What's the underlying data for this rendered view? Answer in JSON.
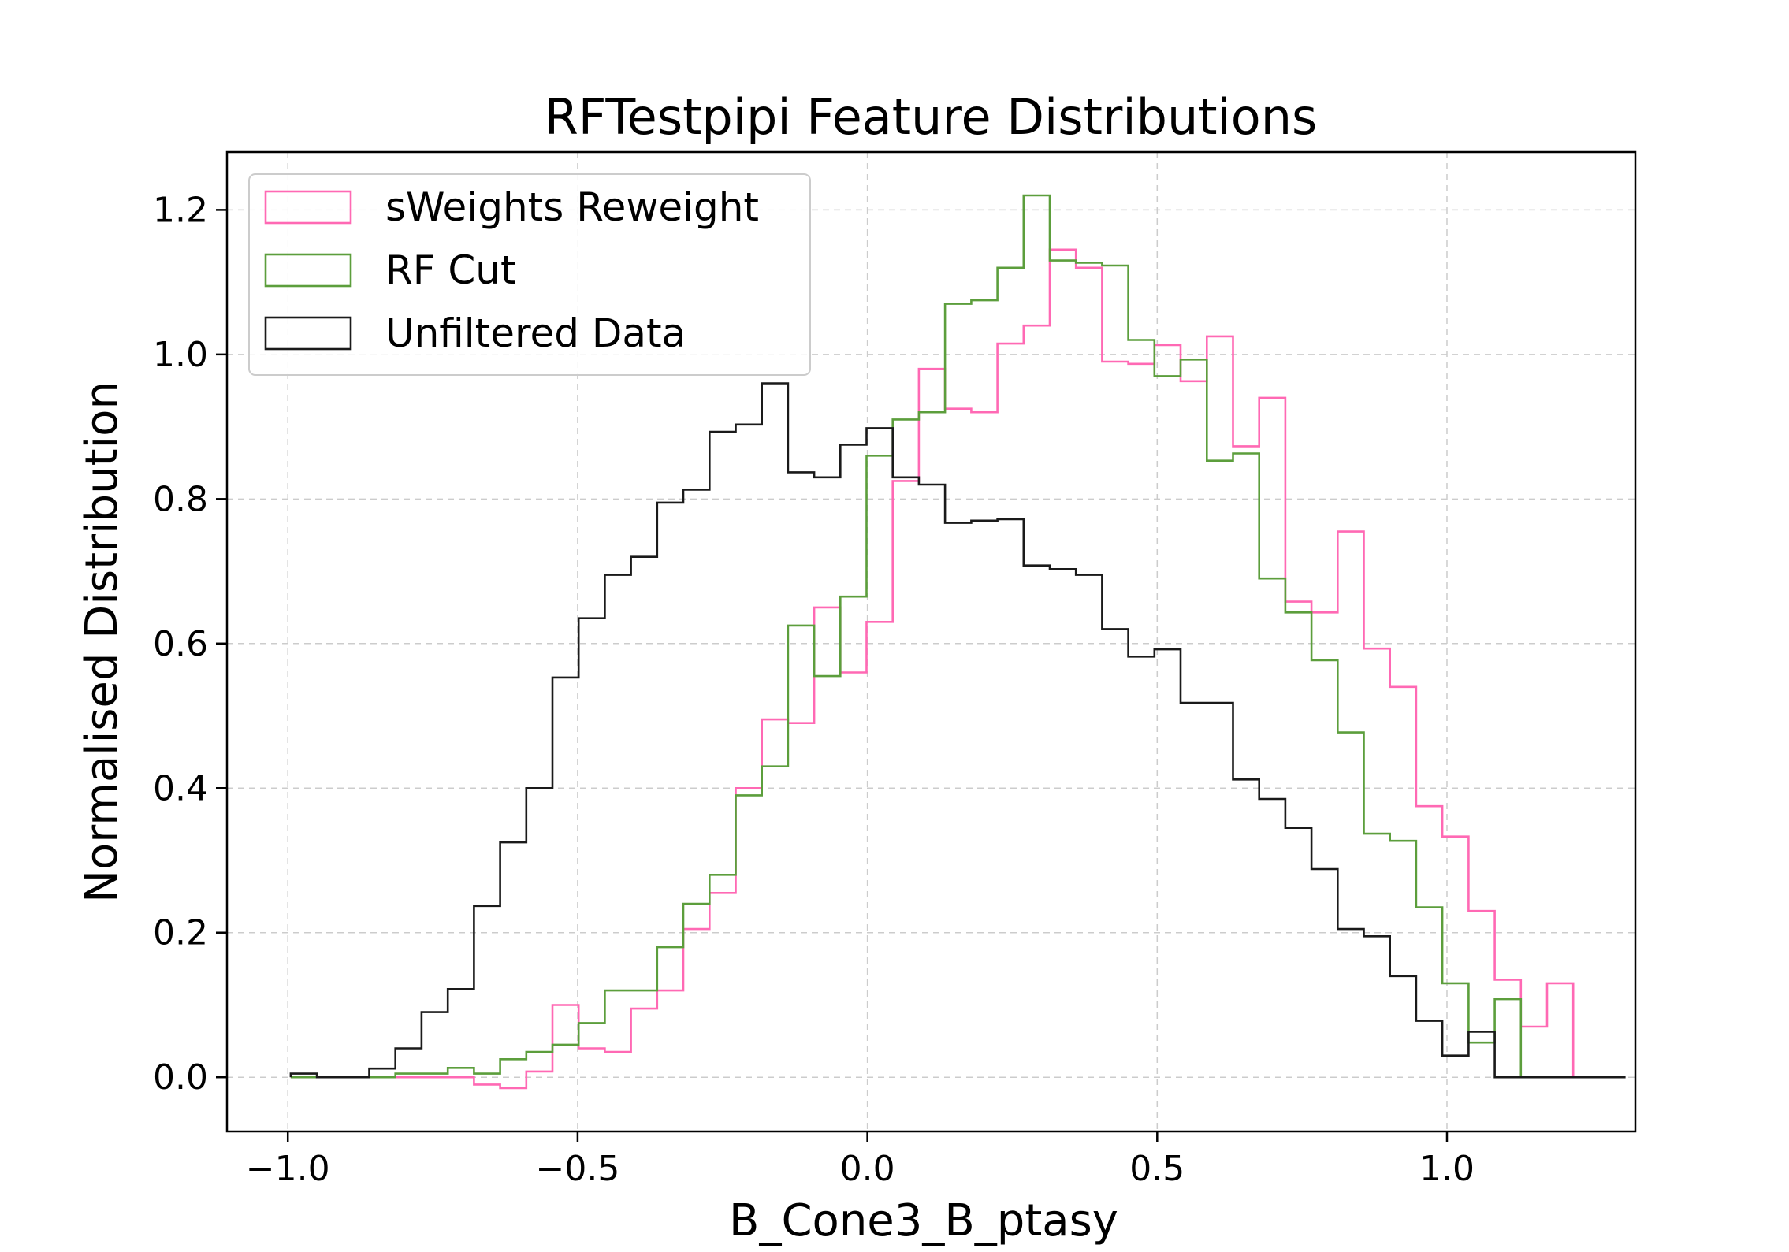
{
  "chart_data": {
    "type": "step-histogram",
    "title": "RFTestpipi Feature Distributions",
    "xlabel": "B_Cone3_B_ptasy",
    "ylabel": "Normalised Distribution",
    "xlim": [
      -1.105,
      1.325
    ],
    "ylim": [
      -0.075,
      1.28
    ],
    "xticks": [
      -1.0,
      -0.5,
      0.0,
      0.5,
      1.0
    ],
    "xtick_labels": [
      "−1.0",
      "−0.5",
      "0.0",
      "0.5",
      "1.0"
    ],
    "yticks": [
      0.0,
      0.2,
      0.4,
      0.6,
      0.8,
      1.0,
      1.2
    ],
    "ytick_labels": [
      "0.0",
      "0.2",
      "0.4",
      "0.6",
      "0.8",
      "1.0",
      "1.2"
    ],
    "grid": true,
    "legend_position": "top-left",
    "bin_start": -0.995,
    "bin_width": 0.04516,
    "series": [
      {
        "name": "sWeights Reweight",
        "color": "#ff69b4",
        "values": [
          0.0,
          0.0,
          0.0,
          0.0,
          0.0,
          0.0,
          0.0,
          -0.01,
          -0.015,
          0.008,
          0.1,
          0.04,
          0.035,
          0.095,
          0.12,
          0.205,
          0.255,
          0.4,
          0.495,
          0.49,
          0.65,
          0.56,
          0.63,
          0.825,
          0.98,
          0.925,
          0.92,
          1.015,
          1.04,
          1.145,
          1.12,
          0.99,
          0.987,
          1.013,
          0.963,
          1.025,
          0.873,
          0.94,
          0.658,
          0.643,
          0.755,
          0.593,
          0.54,
          0.375,
          0.333,
          0.23,
          0.135,
          0.07,
          0.13
        ]
      },
      {
        "name": "RF Cut",
        "color": "#5c9e3c",
        "values": [
          0.0,
          0.0,
          0.0,
          0.0,
          0.005,
          0.005,
          0.013,
          0.005,
          0.025,
          0.035,
          0.045,
          0.075,
          0.12,
          0.12,
          0.18,
          0.24,
          0.28,
          0.39,
          0.43,
          0.625,
          0.555,
          0.665,
          0.86,
          0.91,
          0.92,
          1.07,
          1.075,
          1.12,
          1.22,
          1.13,
          1.127,
          1.123,
          1.02,
          0.97,
          0.993,
          0.853,
          0.863,
          0.69,
          0.643,
          0.577,
          0.477,
          0.337,
          0.327,
          0.235,
          0.13,
          0.048,
          0.108
        ]
      },
      {
        "name": "Unfiltered Data",
        "color": "#1a1a1a",
        "values": [
          0.005,
          0.0,
          0.0,
          0.012,
          0.04,
          0.09,
          0.122,
          0.237,
          0.325,
          0.4,
          0.553,
          0.635,
          0.695,
          0.72,
          0.795,
          0.813,
          0.893,
          0.903,
          0.96,
          0.837,
          0.83,
          0.875,
          0.898,
          0.83,
          0.82,
          0.767,
          0.77,
          0.772,
          0.708,
          0.703,
          0.695,
          0.62,
          0.582,
          0.592,
          0.518,
          0.518,
          0.412,
          0.385,
          0.345,
          0.288,
          0.205,
          0.195,
          0.14,
          0.078,
          0.03,
          0.063,
          0.0,
          0.0,
          0.0,
          0.0,
          0.0
        ]
      }
    ]
  }
}
